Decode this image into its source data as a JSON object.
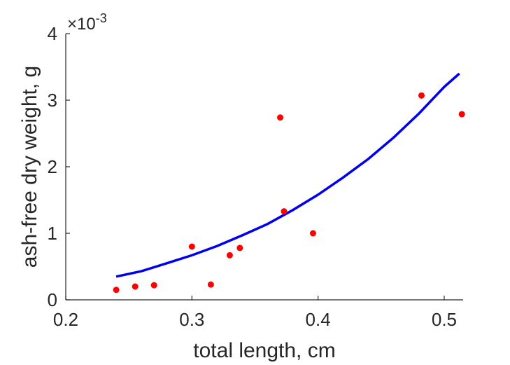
{
  "chart_data": {
    "type": "scatter",
    "xlabel": "total length, cm",
    "ylabel": "ash-free dry weight, g",
    "y_exponent_label": "×10",
    "y_exponent_power": "-3",
    "xlim": [
      0.2,
      0.515
    ],
    "ylim": [
      0,
      0.004
    ],
    "x_ticks": [
      0.2,
      0.3,
      0.4,
      0.5
    ],
    "x_tick_labels": [
      "0.2",
      "0.3",
      "0.4",
      "0.5"
    ],
    "y_ticks": [
      0,
      0.001,
      0.002,
      0.003,
      0.004
    ],
    "y_tick_labels": [
      "0",
      "1",
      "2",
      "3",
      "4"
    ],
    "grid": false,
    "series": [
      {
        "kind": "points",
        "color": "#ff0000",
        "x": [
          0.24,
          0.255,
          0.27,
          0.3,
          0.315,
          0.33,
          0.338,
          0.37,
          0.373,
          0.396,
          0.482,
          0.514
        ],
        "y": [
          0.00015,
          0.0002,
          0.00022,
          0.0008,
          0.00023,
          0.00067,
          0.00078,
          0.00274,
          0.00133,
          0.001,
          0.00307,
          0.00279
        ]
      },
      {
        "kind": "fit-line",
        "color": "#0000ee",
        "x": [
          0.24,
          0.26,
          0.28,
          0.3,
          0.32,
          0.34,
          0.36,
          0.38,
          0.4,
          0.42,
          0.44,
          0.46,
          0.48,
          0.5,
          0.512
        ],
        "y": [
          0.00035,
          0.00043,
          0.00055,
          0.00067,
          0.00081,
          0.00097,
          0.00114,
          0.00135,
          0.00158,
          0.00184,
          0.00212,
          0.00244,
          0.0028,
          0.0032,
          0.0034
        ]
      }
    ]
  }
}
